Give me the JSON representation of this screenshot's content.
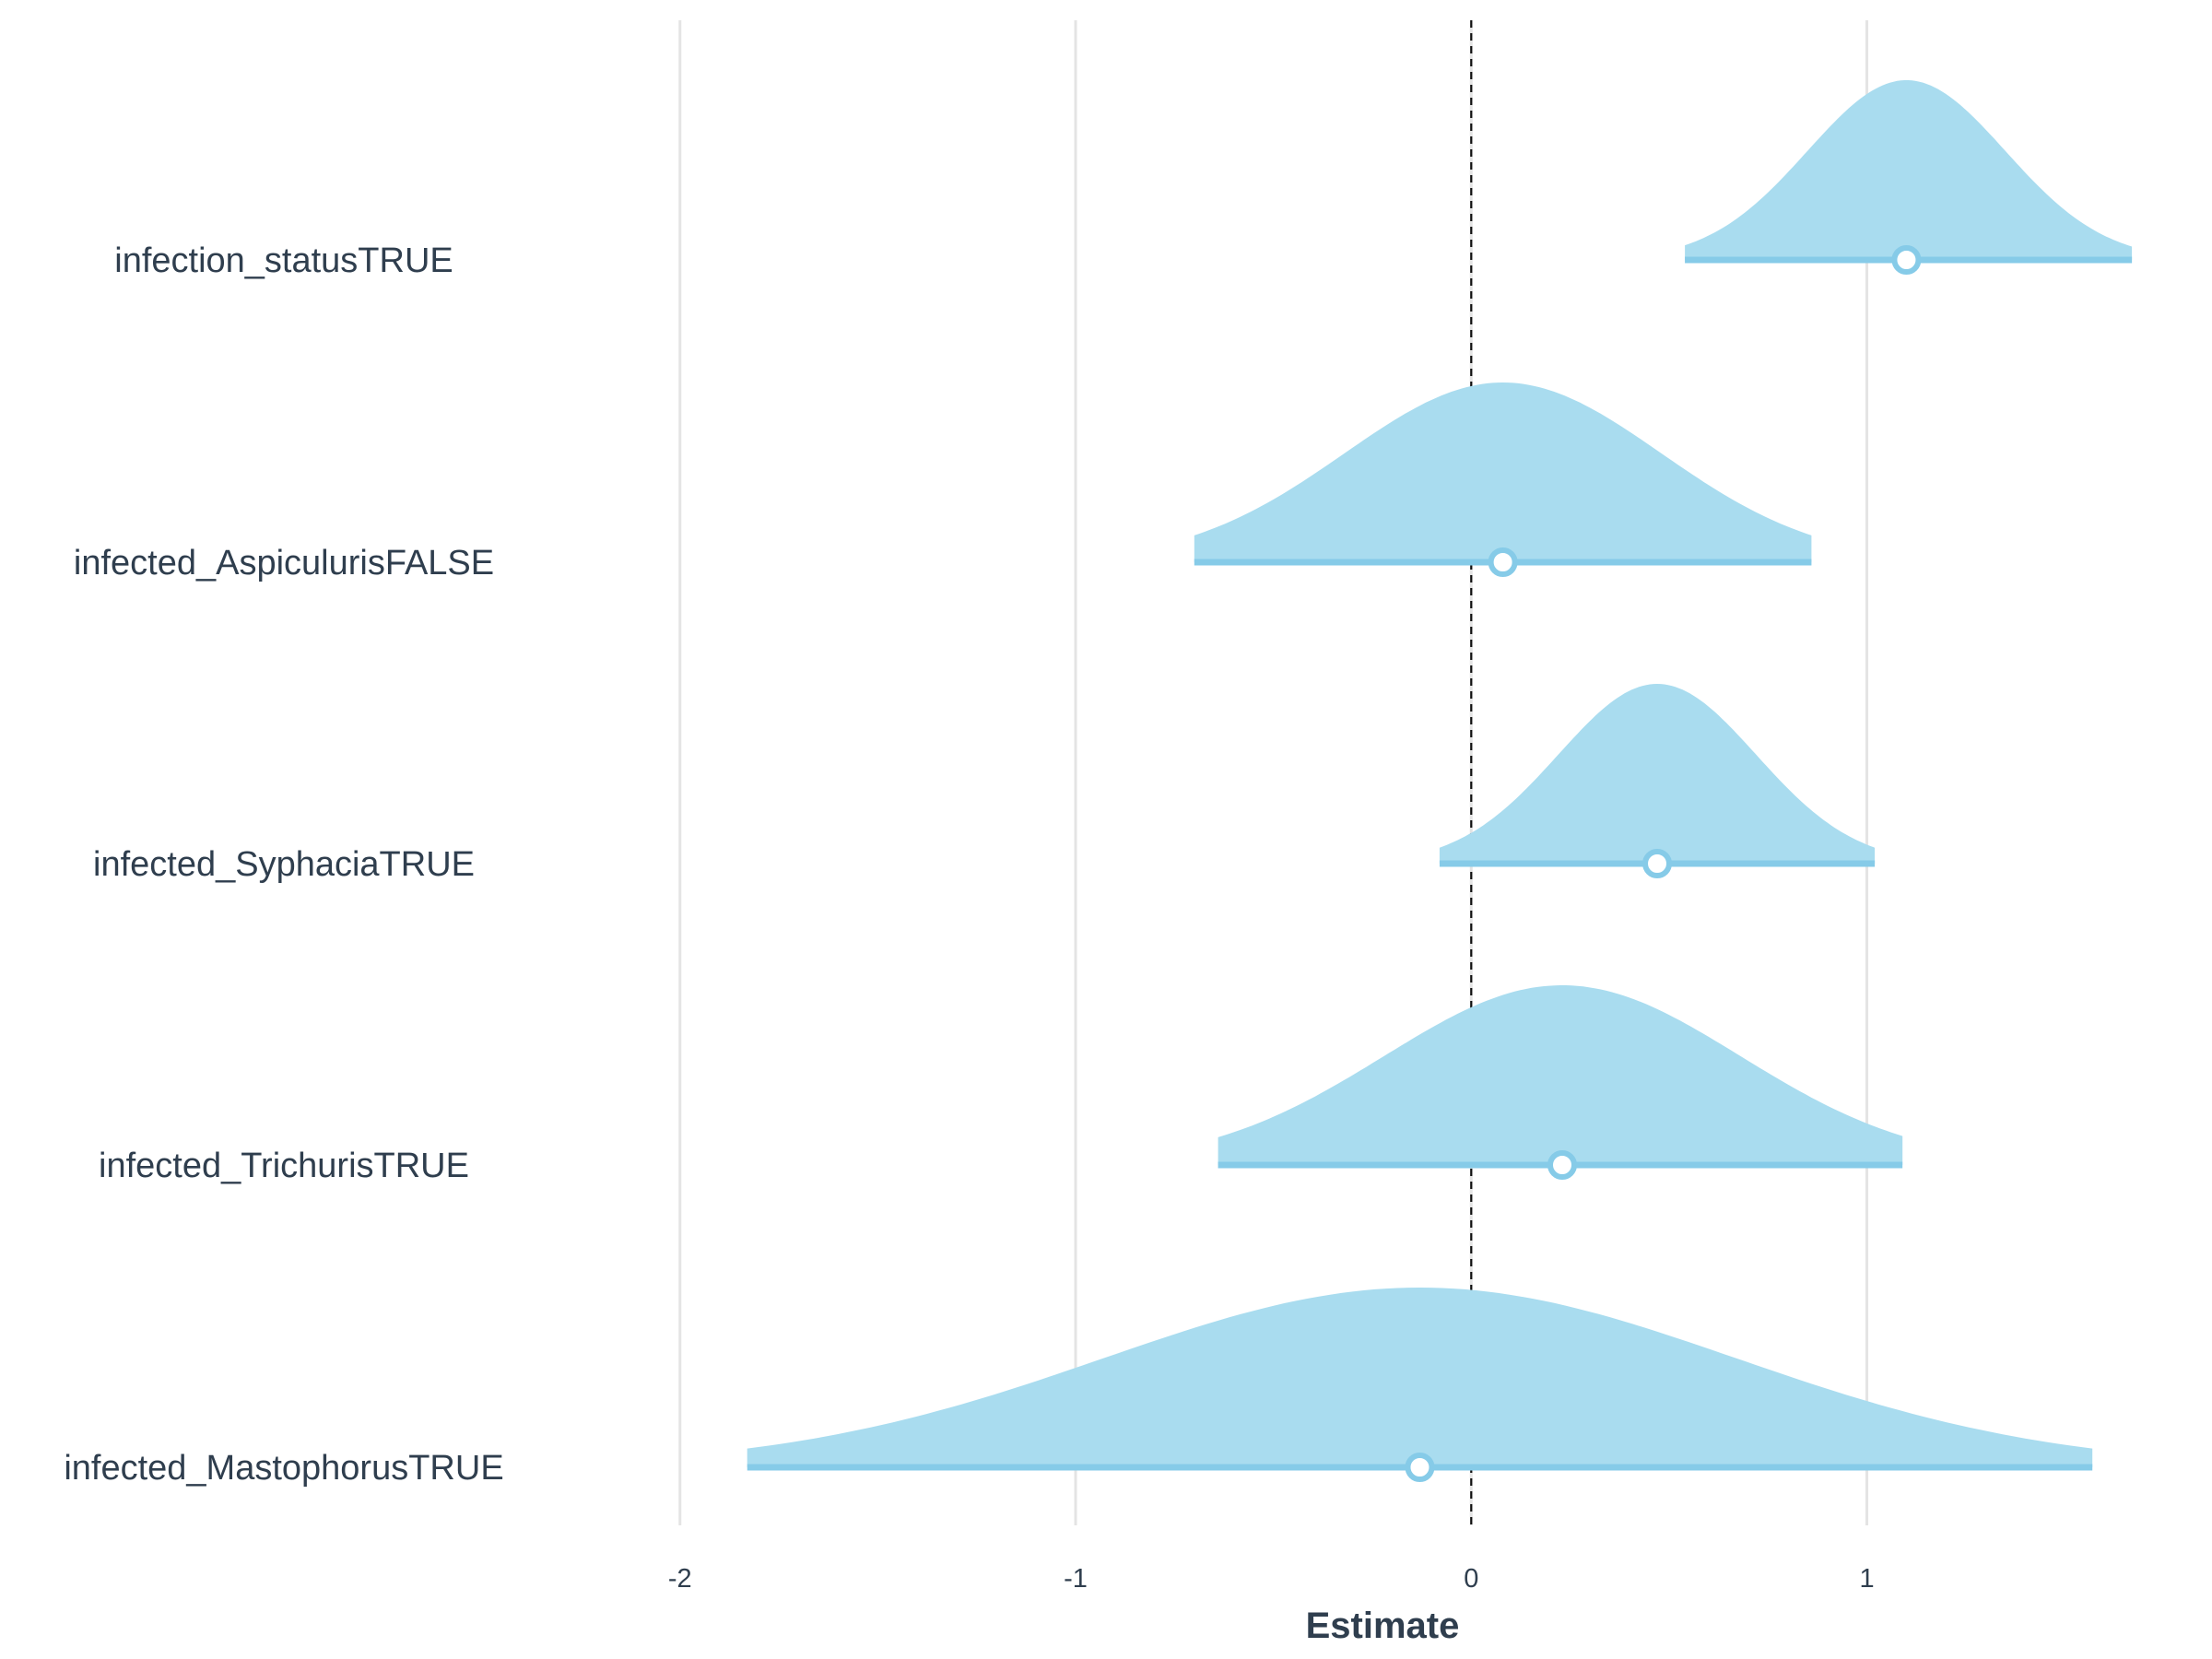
{
  "chart_data": {
    "type": "area",
    "xlabel": "Estimate",
    "ylabel": "",
    "xlim": [
      -2.3,
      1.7
    ],
    "x_ticks": [
      -2,
      -1,
      0,
      1
    ],
    "x_tick_labels": [
      "-2",
      "-1",
      "0",
      "1"
    ],
    "reference_line_x": 0,
    "grid": "vertical",
    "colors": {
      "fill": "#a9dcef",
      "interval": "#86cbe8",
      "point_stroke": "#86cbe8",
      "point_fill": "#ffffff",
      "grid": "#e4e4e4",
      "text": "#2f3e4e"
    },
    "series": [
      {
        "name": "infection_statusTRUE",
        "estimate": 1.1,
        "lower": 0.54,
        "upper": 1.67,
        "sd": 0.25
      },
      {
        "name": "infected_AspiculurisFALSE",
        "estimate": 0.08,
        "lower": -0.7,
        "upper": 0.86,
        "sd": 0.4
      },
      {
        "name": "infected_SyphaciaTRUE",
        "estimate": 0.47,
        "lower": -0.08,
        "upper": 1.02,
        "sd": 0.25
      },
      {
        "name": "infected_TrichurisTRUE",
        "estimate": 0.23,
        "lower": -0.64,
        "upper": 1.09,
        "sd": 0.45
      },
      {
        "name": "infected_MastophorusTRUE",
        "estimate": -0.13,
        "lower": -1.83,
        "upper": 1.57,
        "sd": 0.8
      }
    ]
  }
}
